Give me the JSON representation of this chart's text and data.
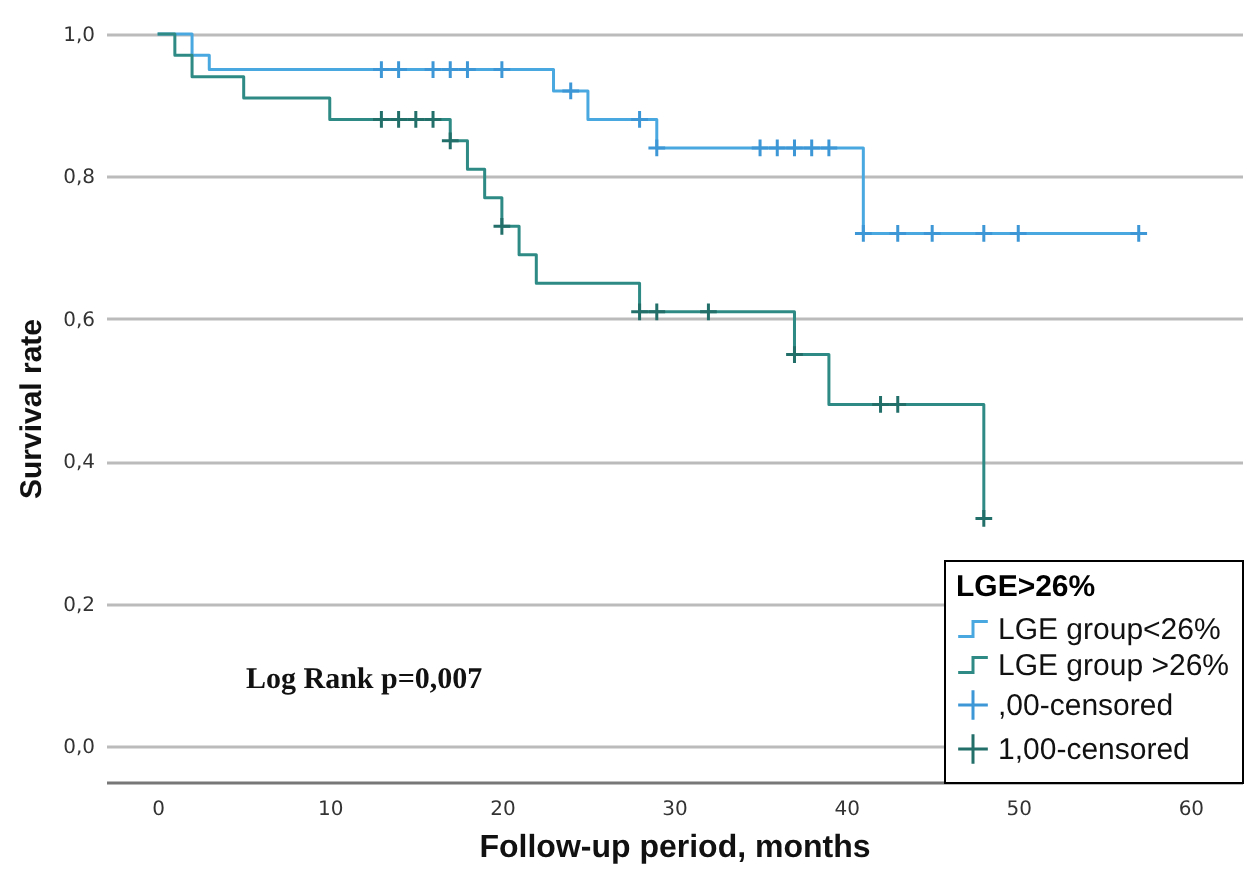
{
  "chart_data": {
    "type": "step",
    "xlabel": "Follow-up period, months",
    "ylabel": "Survival rate",
    "legend_title": "LGE>26%",
    "annotations": [
      "Log Rank p=0,007"
    ],
    "xlim": [
      -3,
      63
    ],
    "xticks": [
      0,
      10,
      20,
      30,
      40,
      50,
      60
    ],
    "ylim": [
      -0.05,
      1
    ],
    "yticks": [
      {
        "value": 0,
        "label": "0,0"
      },
      {
        "value": 0.2,
        "label": "0,2"
      },
      {
        "value": 0.4,
        "label": "0,4"
      },
      {
        "value": 0.6,
        "label": "0,6"
      },
      {
        "value": 0.8,
        "label": "0,8"
      },
      {
        "value": 1,
        "label": "1,0"
      }
    ],
    "grid": "y",
    "legend": "bottom right",
    "line_style": "solid",
    "series": [
      {
        "name": "LGE group<26%",
        "color": "#4aa8e0",
        "x": [
          0,
          2,
          3,
          23,
          25,
          29,
          41,
          57
        ],
        "values": [
          1,
          0.97,
          0.95,
          0.92,
          0.88,
          0.84,
          0.72,
          0.72
        ]
      },
      {
        "name": "LGE group >26%",
        "color": "#2e8a84",
        "x": [
          0,
          1,
          2,
          5,
          10,
          17,
          18,
          19,
          20,
          21,
          22,
          28,
          37,
          39,
          48
        ],
        "values": [
          1,
          0.97,
          0.94,
          0.91,
          0.88,
          0.85,
          0.81,
          0.77,
          0.73,
          0.69,
          0.65,
          0.61,
          0.55,
          0.48,
          0.32
        ]
      },
      {
        "name": ",00-censored",
        "type": "scatter",
        "marker": "cross",
        "color": "#3d96d6",
        "x": [
          13,
          14,
          16,
          17,
          18,
          20,
          24,
          28,
          29,
          35,
          36,
          37,
          38,
          39,
          41,
          43,
          45,
          48,
          50,
          57
        ],
        "values": [
          0.95,
          0.95,
          0.95,
          0.95,
          0.95,
          0.95,
          0.92,
          0.88,
          0.84,
          0.84,
          0.84,
          0.84,
          0.84,
          0.84,
          0.72,
          0.72,
          0.72,
          0.72,
          0.72,
          0.72
        ]
      },
      {
        "name": "1,00-censored",
        "type": "scatter",
        "marker": "cross",
        "color": "#226e69",
        "x": [
          13,
          14,
          15,
          16,
          17,
          20,
          28,
          29,
          32,
          37,
          42,
          43,
          48
        ],
        "values": [
          0.88,
          0.88,
          0.88,
          0.88,
          0.85,
          0.73,
          0.61,
          0.61,
          0.61,
          0.55,
          0.48,
          0.48,
          0.32
        ]
      }
    ]
  }
}
